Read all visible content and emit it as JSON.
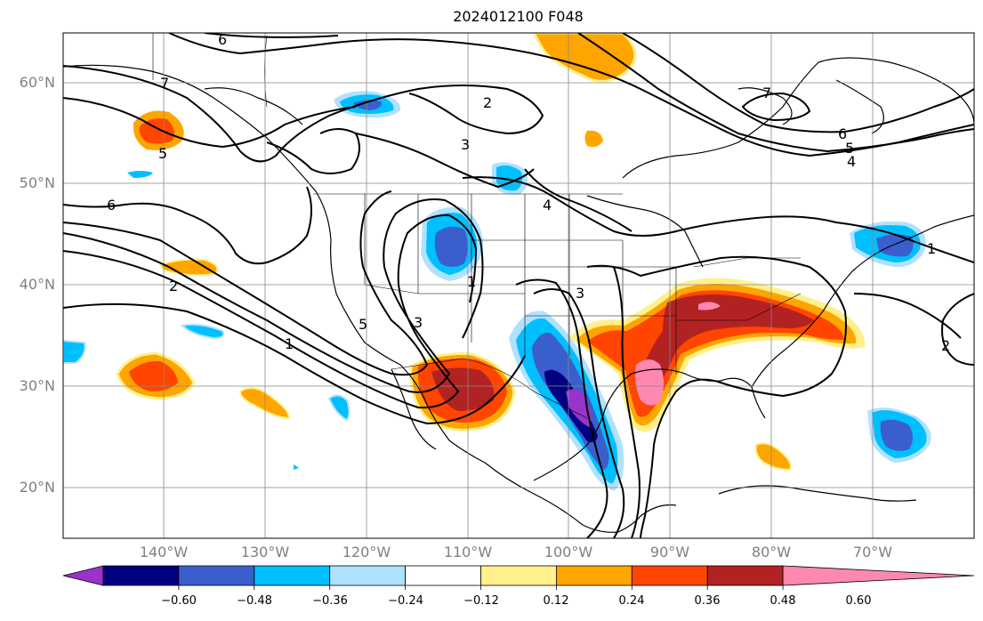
{
  "title": "2024012100 F048",
  "map": {
    "lat_labels": [
      "60°N",
      "50°N",
      "40°N",
      "30°N",
      "20°N"
    ],
    "lon_labels": [
      "140°W",
      "130°W",
      "120°W",
      "110°W",
      "100°W",
      "90°W",
      "80°W",
      "70°W"
    ],
    "contour_labels": [
      "1",
      "2",
      "3",
      "4",
      "5",
      "6",
      "7"
    ],
    "gridlines": true
  },
  "colorbar": {
    "ticks": [
      "−0.60",
      "−0.48",
      "−0.36",
      "−0.24",
      "−0.12",
      "0.12",
      "0.24",
      "0.36",
      "0.48",
      "0.60"
    ],
    "colors": [
      "#9933cc",
      "#000080",
      "#3a5fcd",
      "#00bfff",
      "#b0e2ff",
      "#ffffff",
      "#fff08c",
      "#ffa500",
      "#ff4500",
      "#b22222",
      "#ff88b0"
    ]
  }
}
